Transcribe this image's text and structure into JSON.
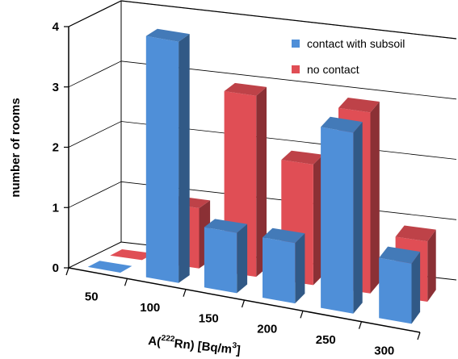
{
  "chart_data": {
    "type": "bar",
    "categories": [
      "50",
      "100",
      "150",
      "200",
      "250",
      "300"
    ],
    "series": [
      {
        "name": "contact with subsoil",
        "values": [
          0,
          4,
          1,
          1,
          3,
          1
        ],
        "color": "#4f8fd8"
      },
      {
        "name": "no contact",
        "values": [
          0,
          1,
          3,
          2,
          3,
          1
        ],
        "color": "#e04e55"
      }
    ],
    "ylim": [
      0,
      4
    ],
    "yticks": [
      "0",
      "1",
      "2",
      "3",
      "4"
    ],
    "ylabel": "number of rooms",
    "xlabel": {
      "pre": "A(",
      "sup1": "222",
      "mid": "Rn) [Bq/m",
      "sup2": "3",
      "post": "]"
    },
    "grid": true,
    "legend_position": "top-right"
  }
}
